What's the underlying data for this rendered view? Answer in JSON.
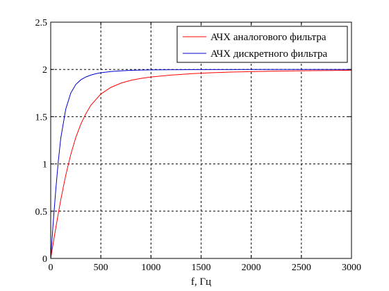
{
  "chart_data": {
    "type": "line",
    "title": "",
    "xlabel": "f, Гц",
    "ylabel": "",
    "xlim": [
      0,
      3000
    ],
    "ylim": [
      0,
      2.5
    ],
    "x_ticks": [
      0,
      500,
      1000,
      1500,
      2000,
      2500,
      3000
    ],
    "x_tick_labels": [
      "0",
      "500",
      "1000",
      "1500",
      "2000",
      "2500",
      "3000"
    ],
    "y_ticks": [
      0,
      0.5,
      1,
      1.5,
      2,
      2.5
    ],
    "y_tick_labels": [
      "0",
      "0.5",
      "1",
      "1.5",
      "2",
      "2.5"
    ],
    "grid": true,
    "grid_style": "dotted",
    "legend_position": "top-right",
    "series": [
      {
        "name": "АЧХ аналогового фильтра",
        "color": "#ff0000",
        "x": [
          0,
          25,
          50,
          75,
          100,
          150,
          200,
          250,
          300,
          350,
          400,
          450,
          500,
          600,
          700,
          800,
          900,
          1000,
          1200,
          1400,
          1600,
          1800,
          2000,
          2200,
          2400,
          2600,
          2800,
          3000
        ],
        "y": [
          0,
          0.16,
          0.32,
          0.47,
          0.62,
          0.88,
          1.1,
          1.28,
          1.42,
          1.53,
          1.62,
          1.68,
          1.74,
          1.81,
          1.855,
          1.885,
          1.905,
          1.92,
          1.94,
          1.955,
          1.965,
          1.972,
          1.977,
          1.981,
          1.984,
          1.987,
          1.989,
          1.991
        ]
      },
      {
        "name": "АЧХ дискретного фильтра",
        "color": "#0000cc",
        "x": [
          0,
          25,
          50,
          75,
          100,
          150,
          200,
          250,
          300,
          350,
          400,
          450,
          500,
          600,
          700,
          800,
          900,
          1000,
          1200,
          1400,
          1600,
          1800,
          2000,
          2200,
          2400,
          2600,
          2800,
          3000
        ],
        "y": [
          0,
          0.38,
          0.72,
          1.02,
          1.27,
          1.58,
          1.75,
          1.84,
          1.89,
          1.92,
          1.94,
          1.955,
          1.965,
          1.978,
          1.985,
          1.99,
          1.993,
          1.995,
          1.997,
          1.998,
          1.999,
          1.999,
          2.0,
          2.0,
          2.0,
          2.0,
          2.0,
          2.0
        ]
      }
    ]
  }
}
